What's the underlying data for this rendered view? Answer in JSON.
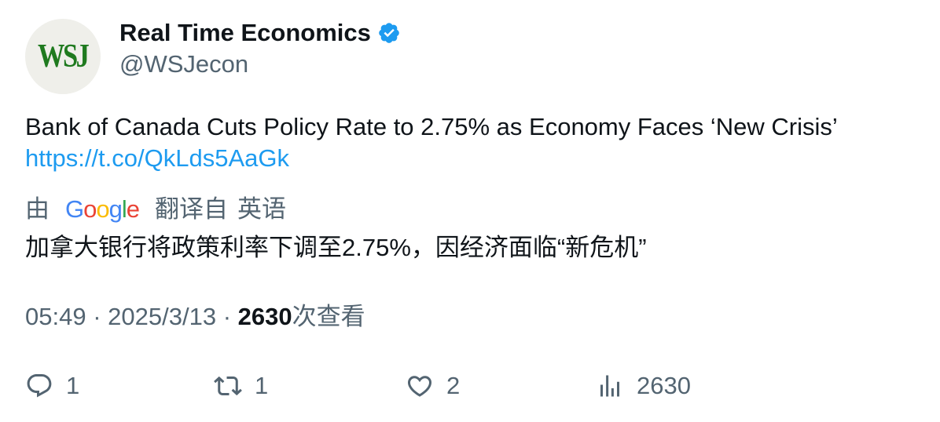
{
  "author": {
    "avatar_text": "WSJ",
    "display_name": "Real Time Economics",
    "handle": "@WSJecon",
    "verified_icon": "verified-badge-icon"
  },
  "tweet": {
    "text": "Bank of Canada Cuts Policy Rate to 2.75% as Economy Faces ‘New Crisis’",
    "link": "https://t.co/QkLds5AaGk"
  },
  "translation": {
    "prefix": "由",
    "provider_logo": "Google",
    "suffix": "翻译自",
    "language": "英语",
    "text": "加拿大银行将政策利率下调至2.75%，因经济面临“新危机”"
  },
  "meta": {
    "time": "05:49",
    "separator": "·",
    "date": "2025/3/13",
    "views_count": "2630",
    "views_label": "次查看"
  },
  "actions": {
    "replies": "1",
    "retweets": "1",
    "likes": "2",
    "views": "2630"
  },
  "colors": {
    "link": "#1d9bf0",
    "secondary_text": "#536471",
    "primary_text": "#0f1419",
    "verified": "#1d9bf0",
    "avatar_bg": "#efefea",
    "avatar_text": "#1f7a1f"
  }
}
